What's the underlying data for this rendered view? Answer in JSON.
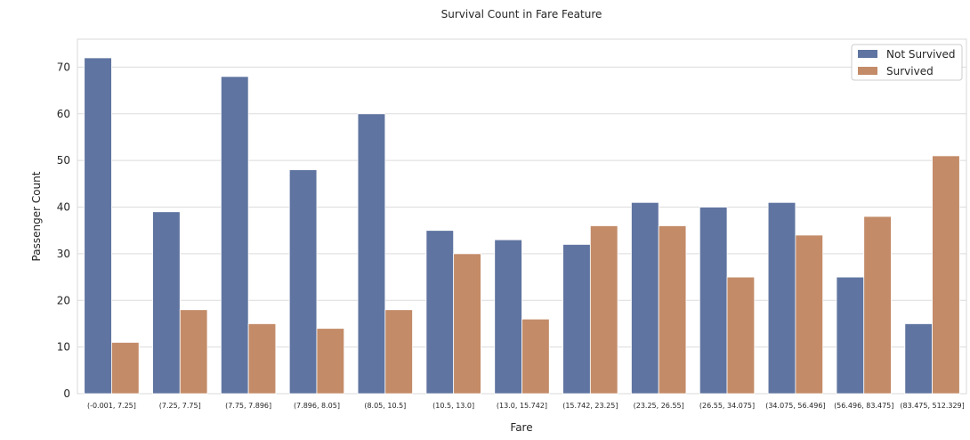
{
  "chart_data": {
    "type": "bar",
    "title": "Survival Count in Fare Feature",
    "xlabel": "Fare",
    "ylabel": "Passenger Count",
    "ylim": [
      0,
      76
    ],
    "yticks": [
      0,
      10,
      20,
      30,
      40,
      50,
      60,
      70
    ],
    "grid": true,
    "legend_position": "top-right",
    "categories": [
      "(-0.001, 7.25]",
      "(7.25, 7.75]",
      "(7.75, 7.896]",
      "(7.896, 8.05]",
      "(8.05, 10.5]",
      "(10.5, 13.0]",
      "(13.0, 15.742]",
      "(15.742, 23.25]",
      "(23.25, 26.55]",
      "(26.55, 34.075]",
      "(34.075, 56.496]",
      "(56.496, 83.475]",
      "(83.475, 512.329]"
    ],
    "series": [
      {
        "name": "Not Survived",
        "color": "#5f74a0",
        "values": [
          72,
          39,
          68,
          48,
          60,
          35,
          33,
          32,
          41,
          40,
          41,
          25,
          15
        ]
      },
      {
        "name": "Survived",
        "color": "#c38b68",
        "values": [
          11,
          18,
          15,
          14,
          18,
          30,
          16,
          36,
          36,
          25,
          34,
          38,
          51
        ]
      }
    ]
  }
}
